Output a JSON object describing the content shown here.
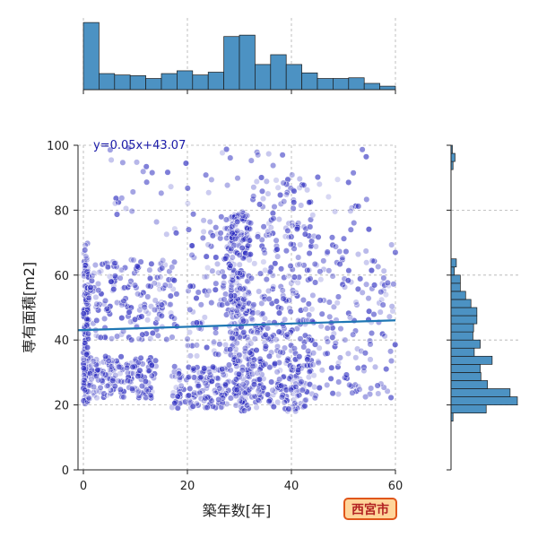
{
  "badge": "西宮市",
  "chart_data": {
    "type": "scatter",
    "xlabel": "築年数[年]",
    "ylabel": "専有面積[m2]",
    "xlim": [
      -1,
      60
    ],
    "ylim": [
      0,
      100
    ],
    "xticks": [
      0,
      20,
      40,
      60
    ],
    "yticks": [
      0,
      20,
      40,
      60,
      80,
      100
    ],
    "grid": true,
    "regression": {
      "slope": 0.05,
      "intercept": 43.07,
      "label": "y=0.05x+43.07"
    },
    "colors": {
      "points": "#2b2bbf",
      "line": "#1f77b4",
      "hist": "#4c92c3",
      "hist_edge": "#1a1a1a",
      "grid": "#b0b0b0"
    },
    "clusters": [
      {
        "x": [
          0,
          1
        ],
        "y": [
          20,
          70
        ],
        "n": 140
      },
      {
        "x": [
          1,
          14
        ],
        "y": [
          22,
          35
        ],
        "n": 160
      },
      {
        "x": [
          1,
          18
        ],
        "y": [
          40,
          65
        ],
        "n": 180
      },
      {
        "x": [
          17,
          28
        ],
        "y": [
          19,
          32
        ],
        "n": 140
      },
      {
        "x": [
          20,
          30
        ],
        "y": [
          35,
          75
        ],
        "n": 100
      },
      {
        "x": [
          28,
          32
        ],
        "y": [
          18,
          80
        ],
        "n": 260
      },
      {
        "x": [
          32,
          44
        ],
        "y": [
          18,
          45
        ],
        "n": 220
      },
      {
        "x": [
          32,
          44
        ],
        "y": [
          45,
          90
        ],
        "n": 160
      },
      {
        "x": [
          44,
          60
        ],
        "y": [
          22,
          70
        ],
        "n": 160
      },
      {
        "x": [
          5,
          55
        ],
        "y": [
          70,
          100
        ],
        "n": 80
      }
    ],
    "x_histogram": {
      "bin_edges": [
        0,
        3,
        6,
        9,
        12,
        15,
        18,
        21,
        24,
        27,
        30,
        33,
        36,
        39,
        42,
        45,
        48,
        51,
        54,
        57,
        60
      ],
      "heights": [
        0.96,
        0.23,
        0.21,
        0.2,
        0.16,
        0.23,
        0.27,
        0.21,
        0.25,
        0.76,
        0.78,
        0.36,
        0.5,
        0.36,
        0.24,
        0.16,
        0.16,
        0.17,
        0.09,
        0.05
      ]
    },
    "y_histogram": {
      "bin_edges": [
        0,
        2.5,
        5,
        7.5,
        10,
        12.5,
        15,
        17.5,
        20,
        22.5,
        25,
        27.5,
        30,
        32.5,
        35,
        37.5,
        40,
        42.5,
        45,
        47.5,
        50,
        52.5,
        55,
        57.5,
        60,
        62.5,
        65,
        67.5,
        70,
        72.5,
        75,
        77.5,
        80,
        82.5,
        85,
        87.5,
        90,
        92.5,
        95,
        97.5,
        100
      ],
      "heights": [
        0,
        0,
        0,
        0,
        0,
        0,
        0.03,
        0.53,
        1.0,
        0.89,
        0.55,
        0.45,
        0.44,
        0.62,
        0.35,
        0.44,
        0.33,
        0.34,
        0.39,
        0.39,
        0.3,
        0.22,
        0.14,
        0.14,
        0.05,
        0.08,
        0,
        0,
        0,
        0,
        0,
        0,
        0,
        0,
        0,
        0,
        0,
        0.03,
        0.06,
        0.02
      ]
    }
  }
}
